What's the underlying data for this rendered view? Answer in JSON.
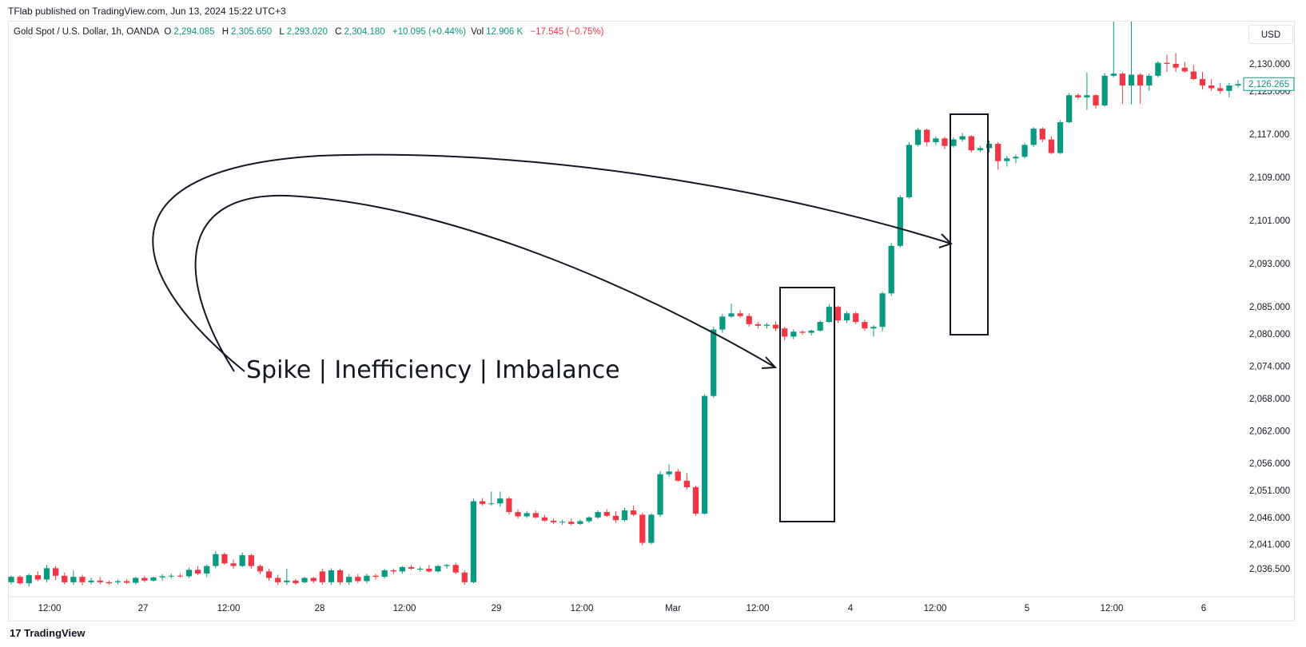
{
  "header": {
    "published": "TFlab published on TradingView.com, Jun 13, 2024 15:22 UTC+3"
  },
  "legend": {
    "symbol": "Gold Spot / U.S. Dollar, 1h, OANDA",
    "o_label": "O",
    "o_value": "2,294.085",
    "h_label": "H",
    "h_value": "2,305.650",
    "l_label": "L",
    "l_value": "2,293.020",
    "c_label": "C",
    "c_value": "2,304.180",
    "change": "+10.095 (+0.44%)",
    "vol_label": "Vol",
    "vol_value": "12.906 K",
    "vol_change": "−17.545 (−0.75%)"
  },
  "currency_button": "USD",
  "footer": {
    "brand": "TradingView"
  },
  "annotation": {
    "text": "Spike | Inefficiency | Imbalance"
  },
  "colors": {
    "up": "#089981",
    "down": "#f23645",
    "last_price": "#089981"
  },
  "icons": [
    "tradingview-logo-icon"
  ],
  "chart_data": {
    "type": "candlestick",
    "title": "Gold Spot / U.S. Dollar, 1h, OANDA",
    "y_ticks": [
      "2,130.000",
      "2,125.000",
      "2,117.000",
      "2,109.000",
      "2,101.000",
      "2,093.000",
      "2,085.000",
      "2,080.000",
      "2,074.000",
      "2,068.000",
      "2,062.000",
      "2,056.000",
      "2,051.000",
      "2,046.000",
      "2,041.000",
      "2,036.500"
    ],
    "x_ticks": [
      "12:00",
      "27",
      "12:00",
      "28",
      "12:00",
      "29",
      "12:00",
      "Mar",
      "12:00",
      "4",
      "12:00",
      "5",
      "12:00",
      "6"
    ],
    "last_price": "2,126.265",
    "ylim": [
      2032,
      2133
    ],
    "candles": [
      [
        2034.0,
        2035.2,
        2033.6,
        2035.0
      ],
      [
        2035.0,
        2035.3,
        2033.5,
        2033.8
      ],
      [
        2033.8,
        2035.6,
        2033.2,
        2035.3
      ],
      [
        2035.3,
        2036.0,
        2034.2,
        2034.5
      ],
      [
        2034.5,
        2037.2,
        2034.0,
        2036.6
      ],
      [
        2036.6,
        2037.0,
        2034.4,
        2035.2
      ],
      [
        2035.2,
        2035.8,
        2033.6,
        2034.0
      ],
      [
        2034.0,
        2036.2,
        2033.5,
        2035.0
      ],
      [
        2035.0,
        2035.4,
        2033.4,
        2034.0
      ],
      [
        2034.0,
        2034.8,
        2033.6,
        2034.3
      ],
      [
        2034.3,
        2035.0,
        2033.6,
        2034.0
      ],
      [
        2034.0,
        2034.3,
        2033.5,
        2033.8
      ],
      [
        2034.0,
        2034.5,
        2033.6,
        2034.2
      ],
      [
        2034.2,
        2034.6,
        2033.7,
        2033.9
      ],
      [
        2033.9,
        2035.0,
        2033.6,
        2034.8
      ],
      [
        2034.8,
        2035.2,
        2034.0,
        2034.3
      ],
      [
        2034.3,
        2035.0,
        2034.1,
        2034.9
      ],
      [
        2034.9,
        2035.5,
        2034.3,
        2035.1
      ],
      [
        2035.1,
        2035.6,
        2034.7,
        2035.2
      ],
      [
        2035.2,
        2035.6,
        2034.9,
        2035.1
      ],
      [
        2035.1,
        2036.7,
        2034.8,
        2036.3
      ],
      [
        2036.3,
        2037.0,
        2035.3,
        2035.6
      ],
      [
        2035.6,
        2037.3,
        2035.0,
        2037.0
      ],
      [
        2037.0,
        2039.8,
        2036.6,
        2039.2
      ],
      [
        2039.2,
        2039.5,
        2037.2,
        2037.5
      ],
      [
        2037.5,
        2038.2,
        2036.5,
        2037.0
      ],
      [
        2037.0,
        2039.5,
        2036.8,
        2039.0
      ],
      [
        2039.0,
        2039.3,
        2036.5,
        2037.0
      ],
      [
        2037.0,
        2037.3,
        2035.5,
        2036.0
      ],
      [
        2036.0,
        2036.5,
        2034.3,
        2034.8
      ],
      [
        2034.8,
        2035.4,
        2033.5,
        2034.0
      ],
      [
        2034.0,
        2036.5,
        2033.5,
        2034.3
      ],
      [
        2034.3,
        2034.6,
        2033.5,
        2033.8
      ],
      [
        2034.0,
        2035.0,
        2033.8,
        2034.8
      ],
      [
        2034.8,
        2035.0,
        2033.8,
        2034.2
      ],
      [
        2036.0,
        2036.5,
        2033.5,
        2034.0
      ],
      [
        2034.0,
        2036.6,
        2033.5,
        2036.2
      ],
      [
        2036.2,
        2036.5,
        2033.5,
        2034.0
      ],
      [
        2034.0,
        2035.5,
        2033.5,
        2035.0
      ],
      [
        2035.0,
        2035.5,
        2033.8,
        2034.2
      ],
      [
        2034.2,
        2035.6,
        2033.8,
        2035.2
      ],
      [
        2035.2,
        2035.6,
        2034.5,
        2035.0
      ],
      [
        2035.0,
        2036.5,
        2034.7,
        2036.2
      ],
      [
        2036.2,
        2036.5,
        2035.5,
        2036.0
      ],
      [
        2036.0,
        2037.0,
        2035.6,
        2036.8
      ],
      [
        2036.8,
        2037.2,
        2036.3,
        2036.5
      ],
      [
        2036.5,
        2036.9,
        2036.0,
        2036.5
      ],
      [
        2036.5,
        2037.2,
        2035.8,
        2036.0
      ],
      [
        2036.0,
        2037.2,
        2035.8,
        2037.0
      ],
      [
        2037.0,
        2037.4,
        2036.5,
        2037.2
      ],
      [
        2037.2,
        2037.6,
        2035.5,
        2035.8
      ],
      [
        2035.8,
        2036.2,
        2033.5,
        2034.0
      ],
      [
        2034.0,
        2049.5,
        2033.8,
        2049.0
      ],
      [
        2049.0,
        2049.6,
        2048.2,
        2048.5
      ],
      [
        2048.5,
        2050.8,
        2048.2,
        2048.6
      ],
      [
        2048.6,
        2050.8,
        2048.0,
        2049.5
      ],
      [
        2049.5,
        2049.8,
        2046.5,
        2047.0
      ],
      [
        2047.0,
        2047.5,
        2045.8,
        2046.2
      ],
      [
        2046.2,
        2047.2,
        2045.9,
        2046.8
      ],
      [
        2046.8,
        2047.3,
        2045.8,
        2046.0
      ],
      [
        2046.0,
        2046.5,
        2045.2,
        2045.4
      ],
      [
        2045.4,
        2045.8,
        2044.8,
        2045.1
      ],
      [
        2045.1,
        2045.6,
        2044.6,
        2045.2
      ],
      [
        2045.2,
        2045.8,
        2044.5,
        2044.8
      ],
      [
        2044.8,
        2045.6,
        2044.6,
        2045.3
      ],
      [
        2045.3,
        2046.2,
        2045.0,
        2046.0
      ],
      [
        2046.0,
        2047.3,
        2045.7,
        2047.0
      ],
      [
        2047.0,
        2047.5,
        2046.1,
        2046.3
      ],
      [
        2046.3,
        2047.2,
        2045.0,
        2045.5
      ],
      [
        2045.5,
        2047.8,
        2045.2,
        2047.3
      ],
      [
        2047.3,
        2048.2,
        2046.2,
        2046.5
      ],
      [
        2046.5,
        2046.8,
        2040.8,
        2041.3
      ],
      [
        2041.3,
        2046.8,
        2041.0,
        2046.5
      ],
      [
        2046.5,
        2054.6,
        2046.1,
        2054.0
      ],
      [
        2054.0,
        2055.8,
        2053.5,
        2054.5
      ],
      [
        2054.5,
        2055.0,
        2052.6,
        2052.8
      ],
      [
        2052.8,
        2054.2,
        2051.2,
        2051.6
      ],
      [
        2051.6,
        2051.9,
        2046.3,
        2046.7
      ],
      [
        2046.7,
        2068.8,
        2046.5,
        2068.5
      ],
      [
        2068.5,
        2081.3,
        2068.2,
        2080.8
      ],
      [
        2080.8,
        2083.7,
        2080.2,
        2083.2
      ],
      [
        2083.2,
        2085.6,
        2083.0,
        2083.8
      ],
      [
        2083.8,
        2084.4,
        2083.0,
        2083.3
      ],
      [
        2083.3,
        2083.8,
        2081.3,
        2081.8
      ],
      [
        2081.8,
        2082.2,
        2081.0,
        2081.5
      ],
      [
        2081.5,
        2082.0,
        2081.0,
        2081.7
      ],
      [
        2081.7,
        2082.3,
        2080.5,
        2081.0
      ],
      [
        2081.0,
        2081.3,
        2078.8,
        2079.5
      ],
      [
        2079.5,
        2080.8,
        2079.0,
        2080.4
      ],
      [
        2080.4,
        2080.7,
        2079.8,
        2080.2
      ],
      [
        2080.2,
        2080.8,
        2079.7,
        2080.6
      ],
      [
        2080.6,
        2082.5,
        2080.4,
        2082.2
      ],
      [
        2082.2,
        2085.5,
        2082.0,
        2085.0
      ],
      [
        2085.0,
        2085.2,
        2082.0,
        2082.5
      ],
      [
        2082.5,
        2084.2,
        2082.0,
        2083.8
      ],
      [
        2083.8,
        2084.1,
        2081.8,
        2082.2
      ],
      [
        2082.2,
        2082.6,
        2080.6,
        2081.0
      ],
      [
        2081.0,
        2081.6,
        2079.5,
        2081.3
      ],
      [
        2081.3,
        2087.8,
        2080.5,
        2087.5
      ],
      [
        2087.5,
        2096.8,
        2087.0,
        2096.3
      ],
      [
        2096.3,
        2105.7,
        2096.0,
        2105.3
      ],
      [
        2105.3,
        2115.5,
        2105.0,
        2115.0
      ],
      [
        2115.0,
        2118.2,
        2114.7,
        2117.8
      ],
      [
        2117.8,
        2118.0,
        2114.8,
        2115.5
      ],
      [
        2115.5,
        2116.6,
        2115.0,
        2116.2
      ],
      [
        2116.2,
        2116.5,
        2114.2,
        2114.8
      ],
      [
        2114.8,
        2116.4,
        2114.5,
        2116.0
      ],
      [
        2116.0,
        2117.2,
        2115.6,
        2116.6
      ],
      [
        2116.6,
        2116.8,
        2113.6,
        2114.0
      ],
      [
        2114.0,
        2114.8,
        2113.7,
        2114.4
      ],
      [
        2114.4,
        2115.8,
        2113.6,
        2115.2
      ],
      [
        2115.2,
        2115.5,
        2110.4,
        2112.0
      ],
      [
        2112.0,
        2113.0,
        2111.0,
        2112.5
      ],
      [
        2112.5,
        2113.2,
        2111.6,
        2112.8
      ],
      [
        2112.8,
        2115.4,
        2112.5,
        2115.0
      ],
      [
        2115.0,
        2118.3,
        2114.6,
        2118.0
      ],
      [
        2118.0,
        2118.3,
        2115.5,
        2116.0
      ],
      [
        2116.0,
        2116.6,
        2113.3,
        2113.5
      ],
      [
        2113.5,
        2119.6,
        2113.3,
        2119.2
      ],
      [
        2119.2,
        2124.6,
        2119.0,
        2124.2
      ],
      [
        2124.2,
        2124.6,
        2123.4,
        2123.8
      ],
      [
        2123.8,
        2128.4,
        2121.5,
        2124.2
      ],
      [
        2124.2,
        2124.4,
        2121.7,
        2122.3
      ],
      [
        2122.3,
        2128.3,
        2122.1,
        2127.8
      ],
      [
        2127.8,
        2139.0,
        2127.5,
        2128.2
      ],
      [
        2128.2,
        2128.5,
        2122.6,
        2126.0
      ],
      [
        2126.0,
        2138.0,
        2122.5,
        2128.0
      ],
      [
        2128.0,
        2128.3,
        2122.6,
        2126.0
      ],
      [
        2126.0,
        2128.2,
        2125.0,
        2127.8
      ],
      [
        2127.8,
        2130.5,
        2127.5,
        2130.2
      ],
      [
        2130.2,
        2131.7,
        2128.5,
        2130.0
      ],
      [
        2130.0,
        2132.0,
        2128.5,
        2129.3
      ],
      [
        2129.3,
        2130.4,
        2128.4,
        2128.6
      ],
      [
        2128.6,
        2129.8,
        2127.0,
        2127.2
      ],
      [
        2127.2,
        2128.5,
        2125.3,
        2126.0
      ],
      [
        2126.0,
        2127.2,
        2125.0,
        2125.5
      ],
      [
        2125.5,
        2126.5,
        2124.5,
        2125.0
      ],
      [
        2125.0,
        2126.5,
        2123.8,
        2126.0
      ],
      [
        2126.0,
        2127.0,
        2125.6,
        2126.265
      ]
    ]
  }
}
